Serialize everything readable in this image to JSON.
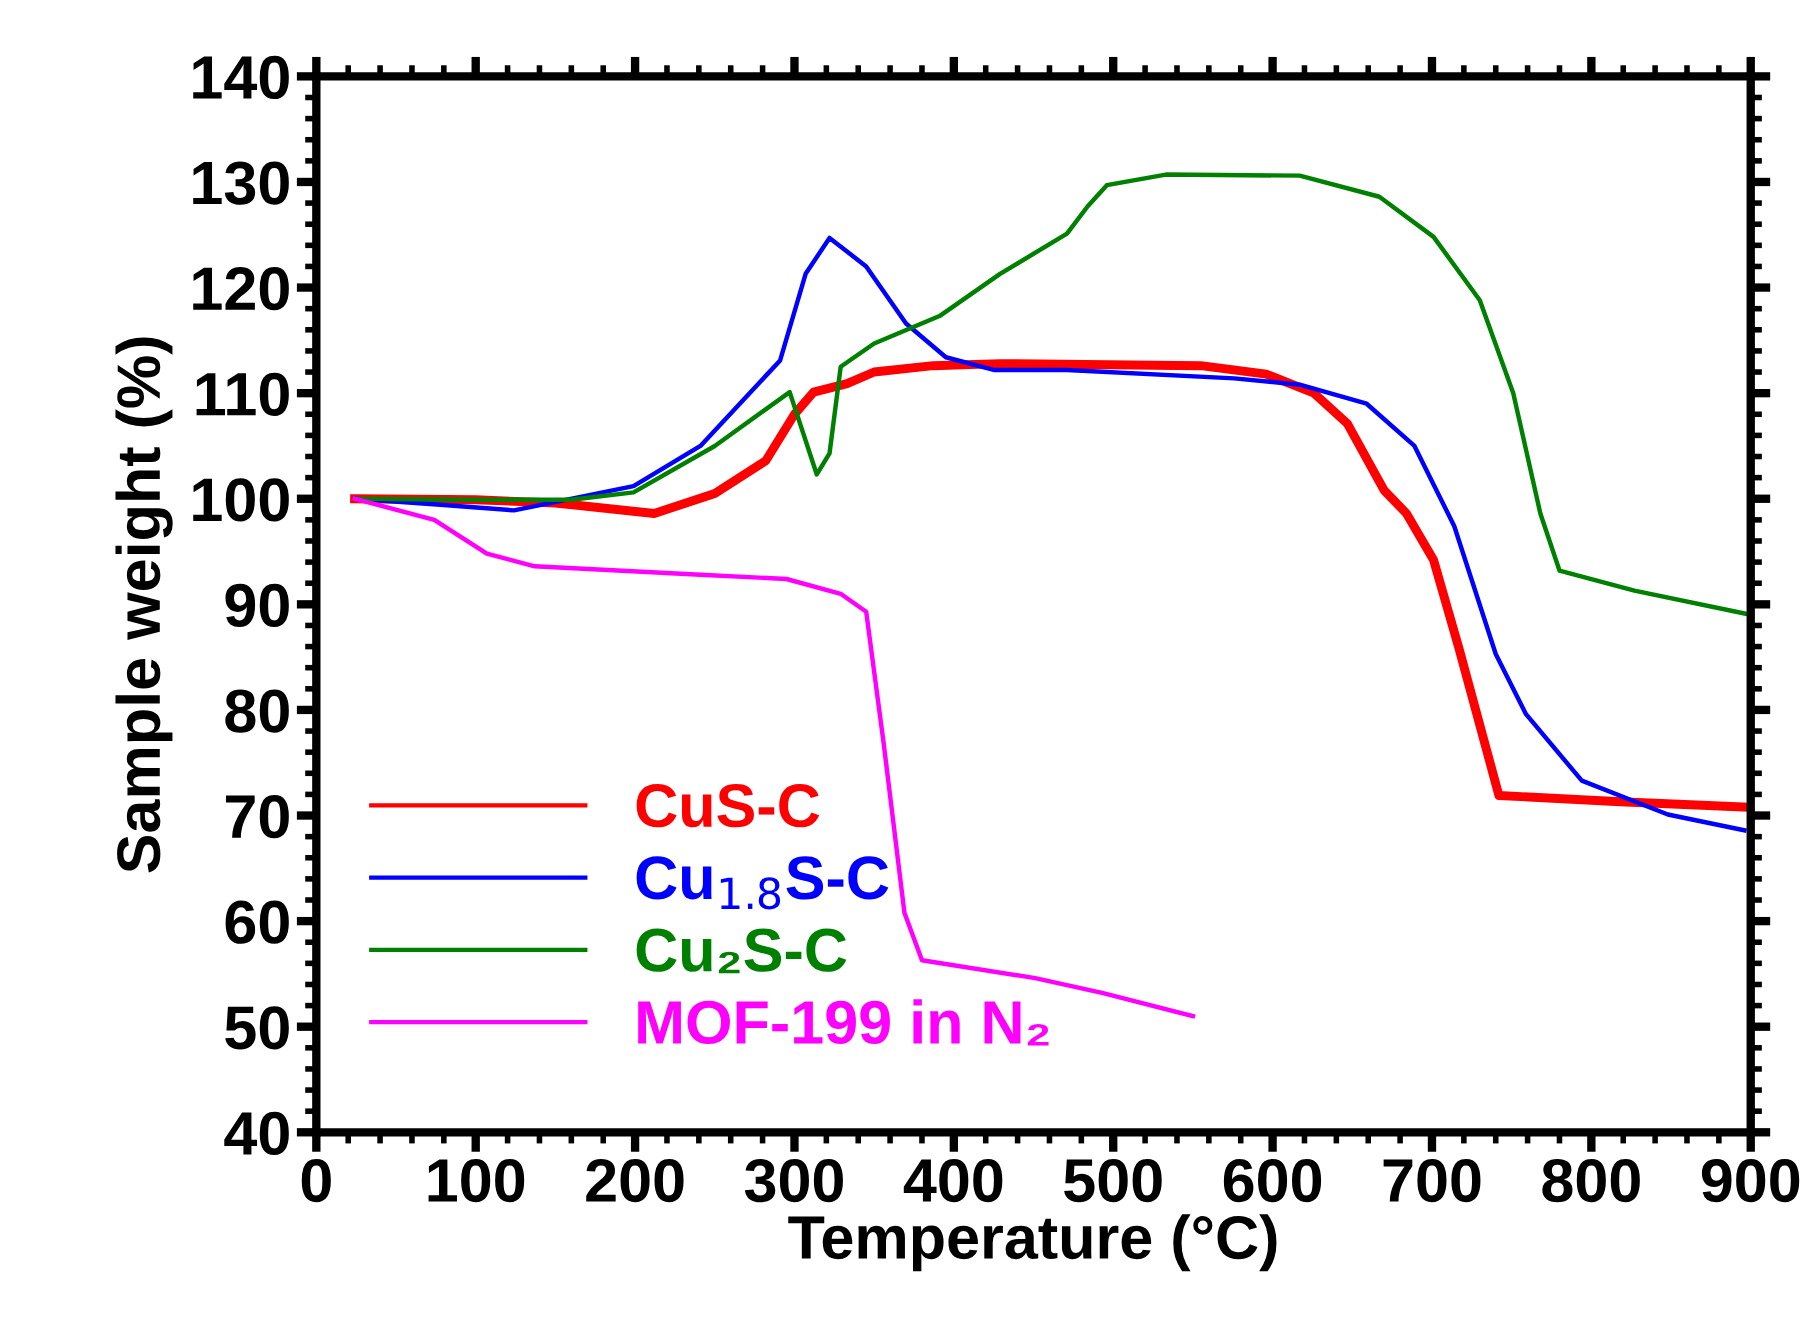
{
  "chart_data": {
    "type": "line",
    "xlabel": "Temperature (°C)",
    "ylabel": "Sample weight (%)",
    "xlim": [
      0,
      900
    ],
    "xticks": [
      0,
      100,
      200,
      300,
      400,
      500,
      600,
      700,
      800,
      900
    ],
    "ylim": [
      40,
      140
    ],
    "yticks": [
      40,
      50,
      60,
      70,
      80,
      90,
      100,
      110,
      120,
      130,
      140
    ],
    "grid": false,
    "legend": "bottom left",
    "marker": "none",
    "line_style": "solid",
    "series": [
      {
        "name": "CuS-C",
        "color": "#ff0000",
        "x": [
          24,
          100,
          150,
          212,
          250,
          282,
          300,
          312,
          333,
          350,
          387,
          429,
          555,
          596,
          626,
          647,
          670,
          684,
          701,
          717,
          742,
          818,
          896
        ],
        "values": [
          100.0,
          99.9,
          99.6,
          98.6,
          100.5,
          103.6,
          108.0,
          110.1,
          110.9,
          112.0,
          112.6,
          112.8,
          112.6,
          111.8,
          110.0,
          107.1,
          100.8,
          98.6,
          94.2,
          85.8,
          71.9,
          71.3,
          70.8
        ]
      },
      {
        "name": "Cu$_{1.8}$S-C",
        "color": "#0000ff",
        "x": [
          24,
          80,
          124,
          199,
          241,
          291,
          307,
          322,
          345,
          370,
          395,
          425,
          471,
          576,
          617,
          659,
          689,
          714,
          740,
          759,
          794,
          848,
          896
        ],
        "values": [
          100.0,
          99.4,
          98.9,
          101.2,
          105.0,
          113.1,
          121.3,
          124.7,
          122.0,
          116.6,
          113.4,
          112.2,
          112.2,
          111.4,
          110.8,
          109.0,
          105.0,
          97.4,
          85.3,
          79.6,
          73.3,
          70.1,
          68.6
        ]
      },
      {
        "name": "Cu₂S-C",
        "color": "#008000",
        "x": [
          24,
          100,
          160,
          199,
          250,
          297,
          314,
          322,
          329,
          350,
          391,
          429,
          471,
          484,
          496,
          533,
          617,
          667,
          701,
          730,
          751,
          768,
          780,
          827,
          897
        ],
        "values": [
          100.0,
          99.9,
          99.9,
          100.6,
          105.0,
          110.1,
          102.3,
          104.3,
          112.5,
          114.7,
          117.3,
          121.3,
          125.1,
          127.7,
          129.7,
          130.7,
          130.6,
          128.6,
          124.8,
          118.8,
          110.0,
          98.6,
          93.2,
          91.3,
          89.1
        ]
      },
      {
        "name": "MOF-199 in N₂",
        "color": "#ff00ff",
        "x": [
          24,
          74,
          107,
          137,
          241,
          295,
          329,
          345,
          356,
          369,
          380,
          451,
          493,
          550
        ],
        "values": [
          100.0,
          98.0,
          94.8,
          93.6,
          92.8,
          92.4,
          91.0,
          89.3,
          76.8,
          60.8,
          56.3,
          54.6,
          53.2,
          51.0
        ]
      }
    ]
  }
}
